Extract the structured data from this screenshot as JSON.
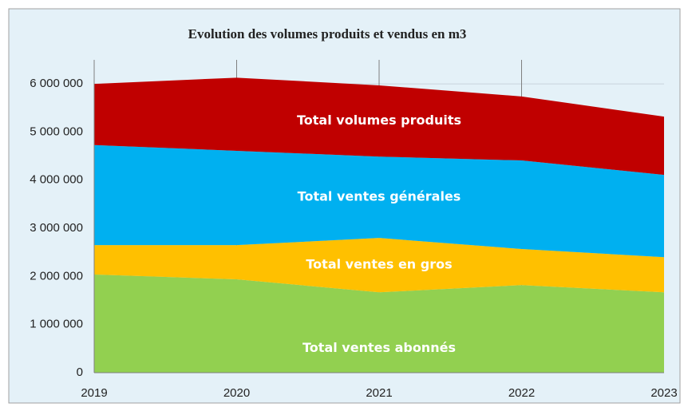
{
  "chart_data": {
    "type": "stacked_area",
    "title": "Evolution des volumes produits et vendus en m3",
    "categories": [
      "2019",
      "2020",
      "2021",
      "2022",
      "2023"
    ],
    "series": [
      {
        "name": "Total ventes abonnés",
        "color": "#92d050",
        "values": [
          2040000,
          1940000,
          1670000,
          1820000,
          1670000
        ]
      },
      {
        "name": "Total ventes en gros",
        "color": "#ffc000",
        "values": [
          610000,
          710000,
          1130000,
          750000,
          730000
        ]
      },
      {
        "name": "Total ventes générales",
        "color": "#00b0f0",
        "values": [
          2080000,
          1960000,
          1690000,
          1840000,
          1710000
        ]
      },
      {
        "name": "Total volumes produits",
        "color": "#c00000",
        "values": [
          1270000,
          1520000,
          1480000,
          1330000,
          1210000
        ]
      }
    ],
    "ylim": [
      0,
      6500000
    ],
    "yticks": [
      0,
      {
        "value": 1000000,
        "label": "1 000 000"
      },
      {
        "value": 2000000,
        "label": "2 000 000"
      },
      {
        "value": 3000000,
        "label": "3 000 000"
      },
      {
        "value": 4000000,
        "label": "4 000 000"
      },
      {
        "value": 5000000,
        "label": "5 000 000"
      },
      {
        "value": 6000000,
        "label": "6 000 000"
      }
    ],
    "grid": true
  }
}
